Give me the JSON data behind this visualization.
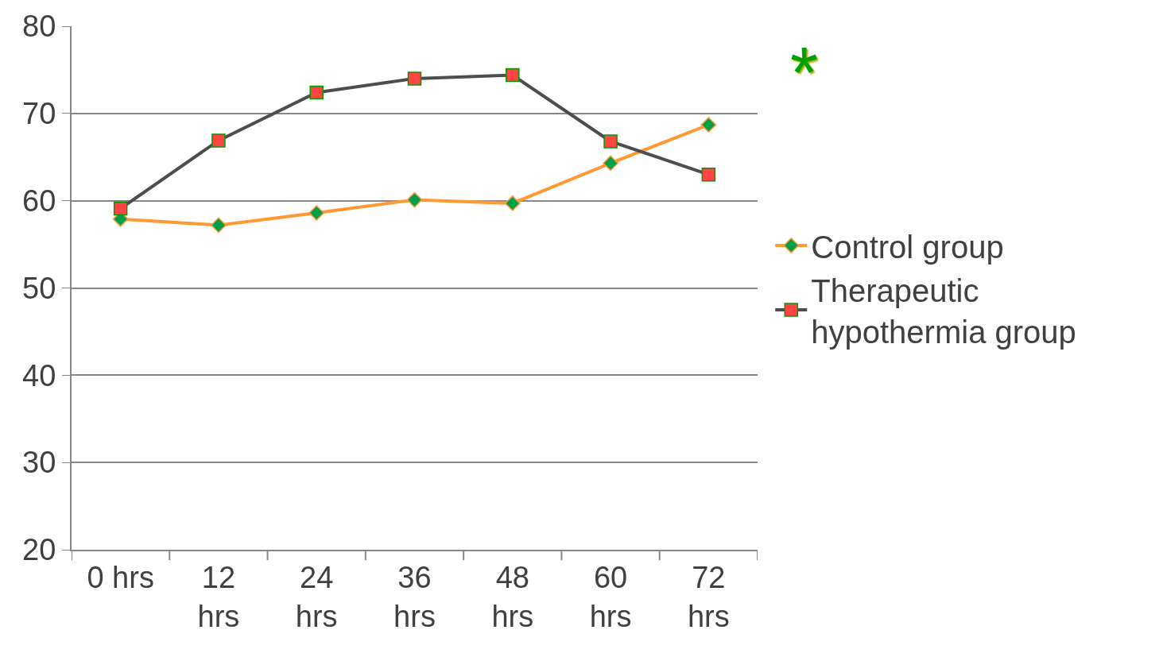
{
  "chart_data": {
    "type": "line",
    "categories": [
      "0 hrs",
      "12\nhrs",
      "24\nhrs",
      "36\nhrs",
      "48\nhrs",
      "60\nhrs",
      "72\nhrs"
    ],
    "series": [
      {
        "name": "Control group",
        "color": "#ff9933",
        "marker": "diamond",
        "values": [
          57.9,
          57.2,
          58.6,
          60.1,
          59.7,
          64.3,
          68.7
        ]
      },
      {
        "name": "Therapeutic\nhypothermia group",
        "color": "#4d4d4d",
        "marker": "square",
        "values": [
          59.1,
          66.9,
          72.4,
          74.0,
          74.4,
          66.8,
          63.0
        ]
      }
    ],
    "ylim": [
      20,
      80
    ],
    "yticks": [
      20,
      30,
      40,
      50,
      60,
      70,
      80
    ],
    "grid": "y",
    "legend": "right",
    "annotations": [
      "*"
    ]
  }
}
